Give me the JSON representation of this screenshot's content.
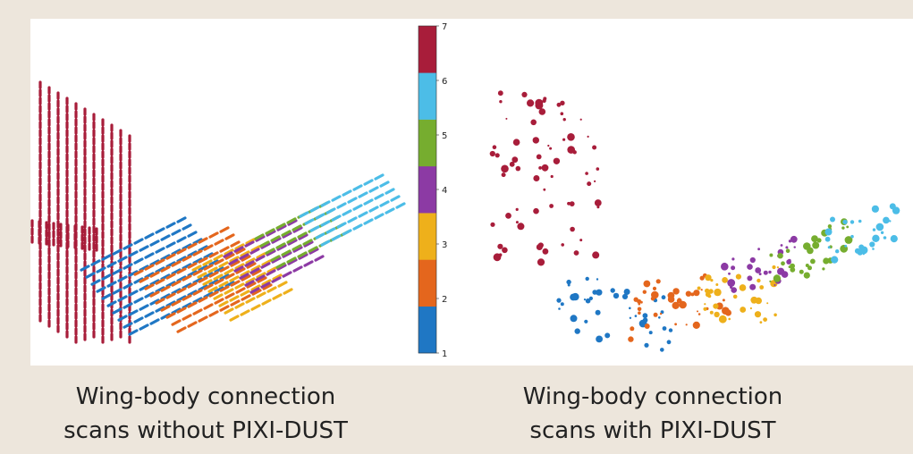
{
  "colors": {
    "1": "#1f77c4",
    "2": "#e4661d",
    "3": "#eeb01b",
    "4": "#8c3aa4",
    "5": "#76ad2f",
    "6": "#4cbde7",
    "7": "#a81d3a"
  },
  "colorbar": {
    "ticks": [
      "1",
      "2",
      "3",
      "4",
      "5",
      "6",
      "7"
    ]
  },
  "captions": {
    "left_line1": "Wing-body connection",
    "left_line2": "scans without PIXI-DUST",
    "right_line1": "Wing-body connection",
    "right_line2": "scans with PIXI-DUST"
  }
}
